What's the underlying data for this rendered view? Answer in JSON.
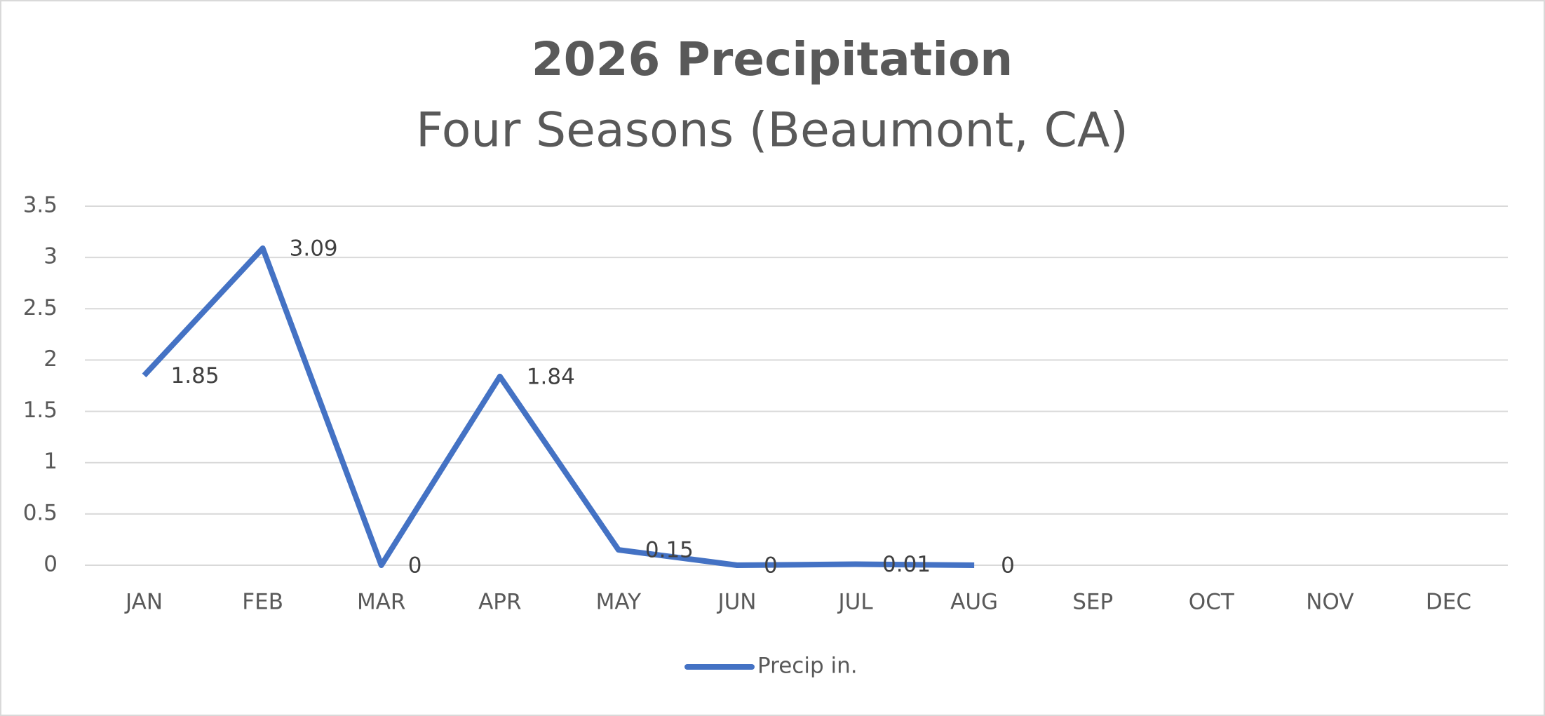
{
  "chart_data": {
    "type": "line",
    "title": "2026 Precipitation",
    "subtitle": "Four Seasons (Beaumont, CA)",
    "categories": [
      "JAN",
      "FEB",
      "MAR",
      "APR",
      "MAY",
      "JUN",
      "JUL",
      "AUG",
      "SEP",
      "OCT",
      "NOV",
      "DEC"
    ],
    "series": [
      {
        "name": "Precip in.",
        "color": "#4472c4",
        "values": [
          1.85,
          3.09,
          0,
          1.84,
          0.15,
          0,
          0.01,
          0,
          null,
          null,
          null,
          null
        ]
      }
    ],
    "ylim": [
      0,
      3.5
    ],
    "yticks": [
      0,
      0.5,
      1,
      1.5,
      2,
      2.5,
      3,
      3.5
    ],
    "grid": true,
    "legend": "bottom",
    "data_labels": true
  }
}
